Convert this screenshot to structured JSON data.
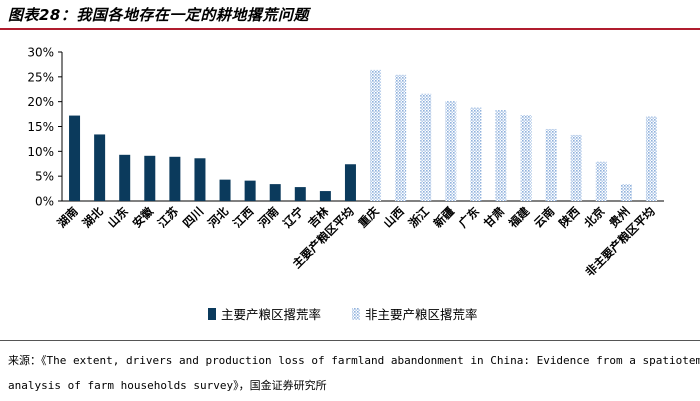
{
  "header": {
    "title": "图表28：我国各地存在一定的耕地撂荒问题"
  },
  "chart_data": {
    "type": "bar",
    "title": "图表28：我国各地存在一定的耕地撂荒问题",
    "xlabel": "",
    "ylabel": "",
    "ylim": [
      0,
      30
    ],
    "yticks": [
      "0%",
      "5%",
      "10%",
      "15%",
      "20%",
      "25%",
      "30%"
    ],
    "grid": false,
    "legend": "bottom",
    "categories": [
      "湖南",
      "湖北",
      "山东",
      "安徽",
      "江苏",
      "四川",
      "河北",
      "江西",
      "河南",
      "辽宁",
      "吉林",
      "主要产粮区平均",
      "重庆",
      "山西",
      "浙江",
      "新疆",
      "广东",
      "甘肃",
      "福建",
      "云南",
      "陕西",
      "北京",
      "贵州",
      "非主要产粮区平均"
    ],
    "series": [
      {
        "name": "主要产粮区撂荒率",
        "color": "#0b3a5c",
        "pattern": "solid",
        "values": [
          17.2,
          13.4,
          9.3,
          9.1,
          8.9,
          8.6,
          4.3,
          4.1,
          3.4,
          2.8,
          2.0,
          7.4,
          null,
          null,
          null,
          null,
          null,
          null,
          null,
          null,
          null,
          null,
          null,
          null
        ]
      },
      {
        "name": "非主要产粮区撂荒率",
        "color": "#9dbbe0",
        "pattern": "dotted",
        "values": [
          null,
          null,
          null,
          null,
          null,
          null,
          null,
          null,
          null,
          null,
          null,
          null,
          26.4,
          25.4,
          21.6,
          20.1,
          18.8,
          18.3,
          17.3,
          14.5,
          13.3,
          7.9,
          3.4,
          17.0
        ]
      }
    ]
  },
  "source": {
    "line1": "来源：《The extent, drivers and production loss of farmland abandonment in China: Evidence from a spatiotemporal",
    "line2": "analysis of farm households survey》，国金证券研究所"
  }
}
